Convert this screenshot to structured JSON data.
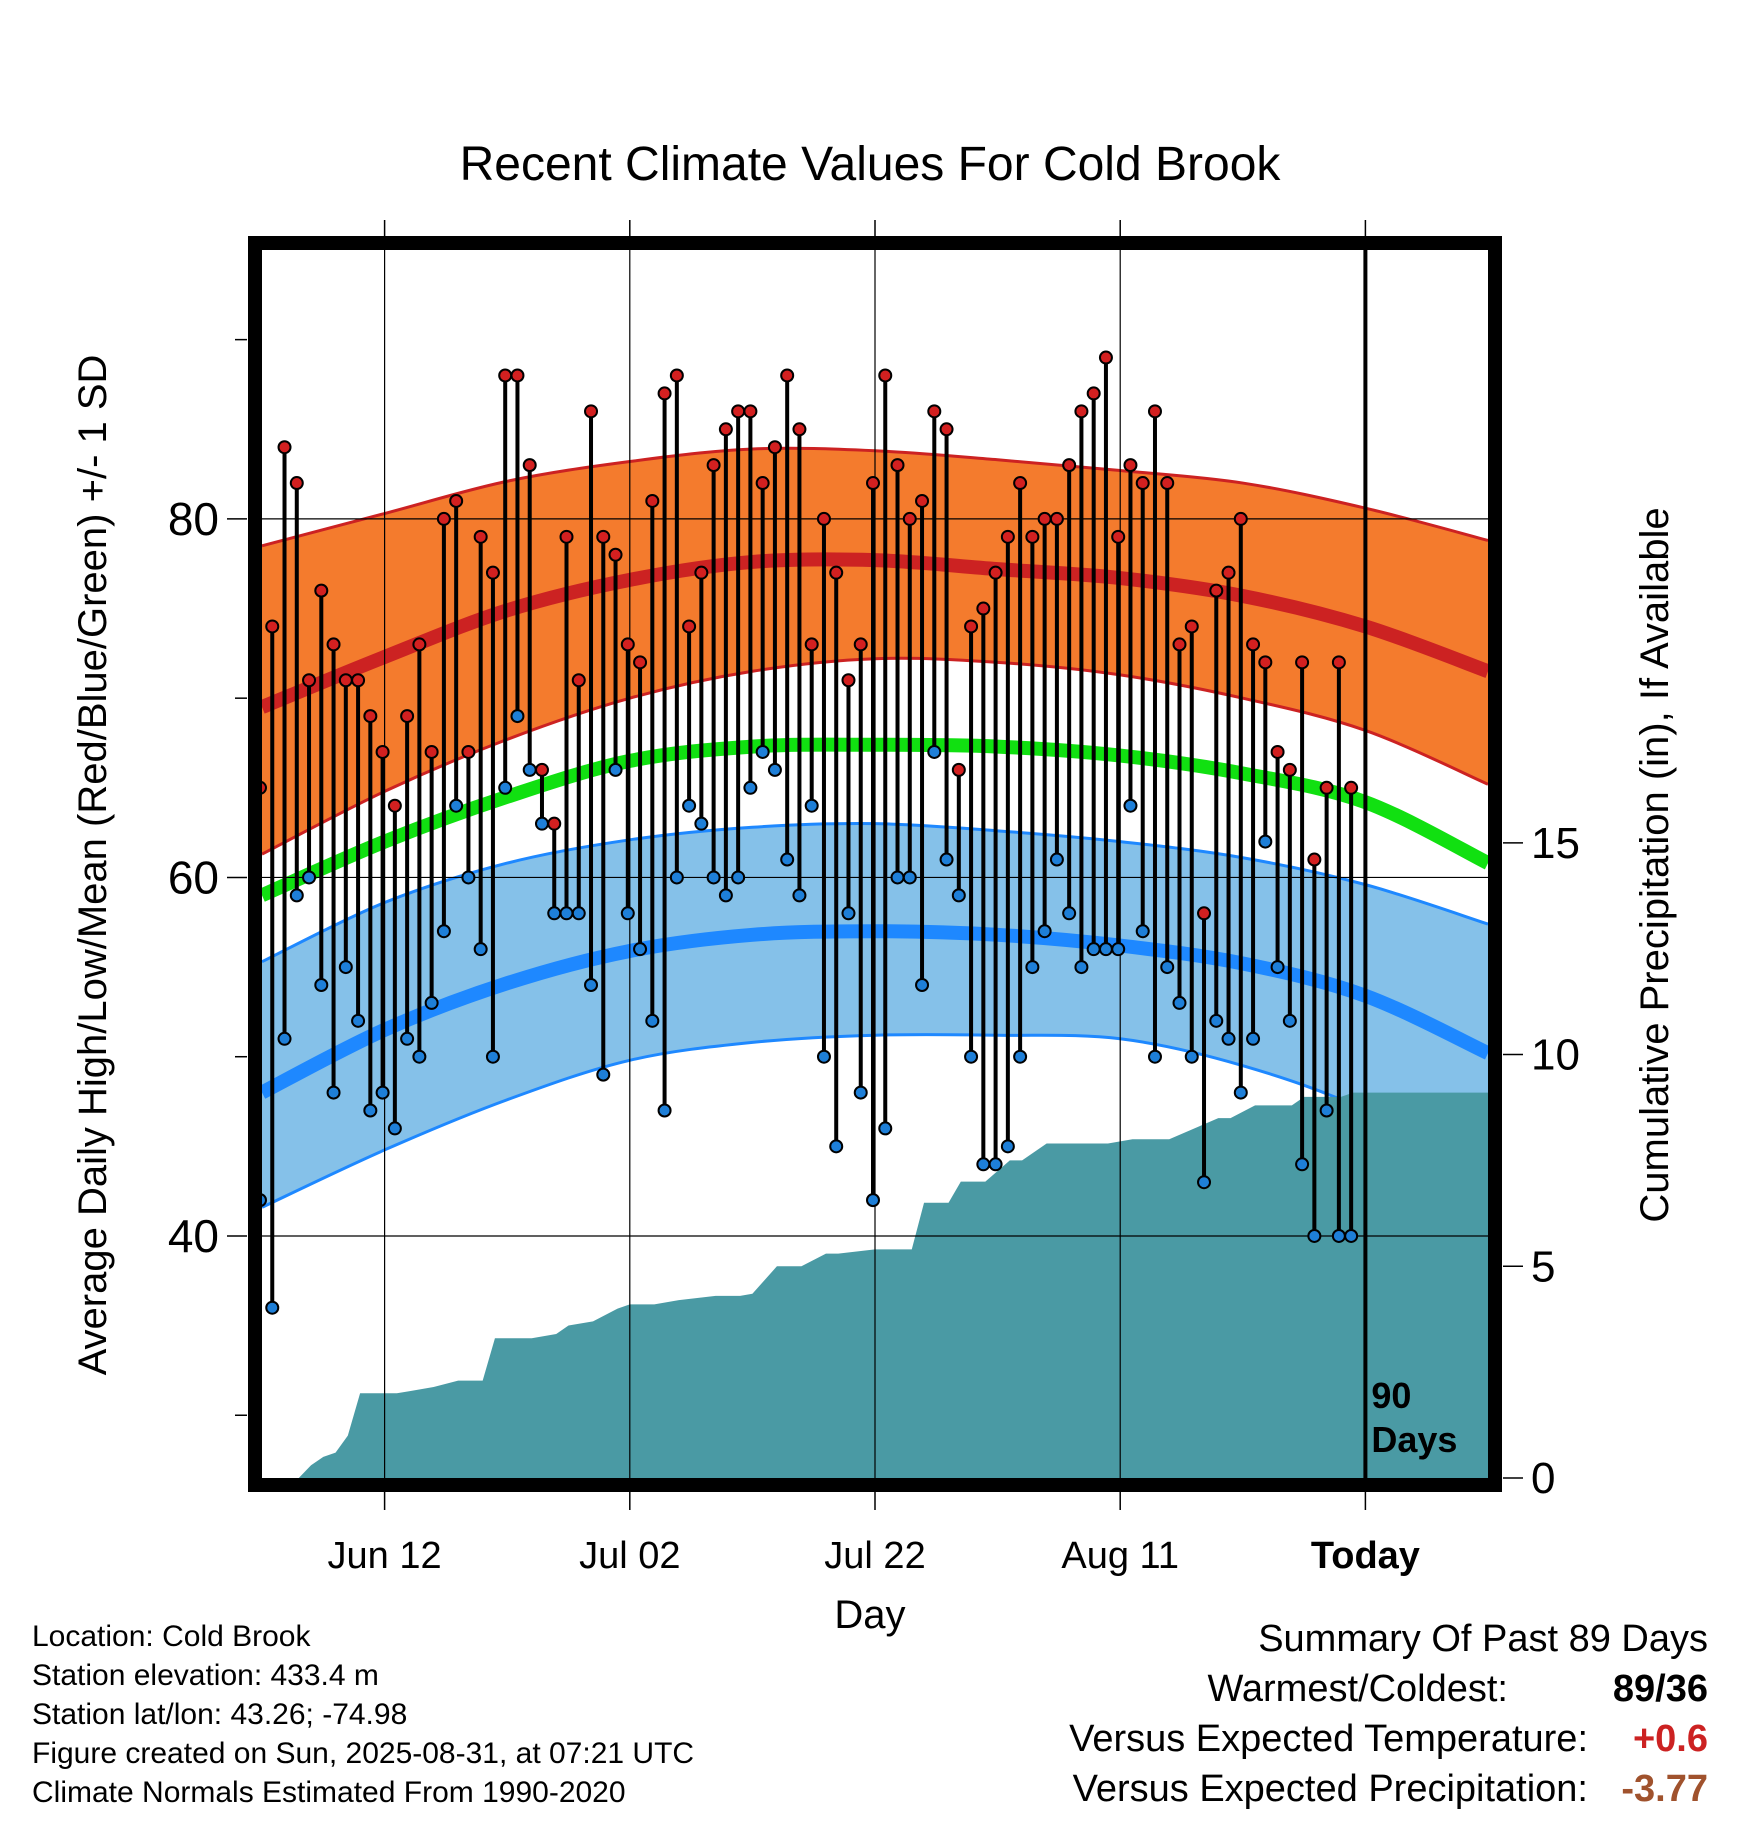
{
  "chart_data": {
    "type": "line",
    "title": "Recent Climate Values For Cold Brook",
    "xlabel": "Day",
    "ylabel": "Average Daily High/Low/Mean (Red/Blue/Green) +/- 1 SD",
    "y2label": "Cumulative Precipitation (in), If Available",
    "x_tick_labels": [
      "Jun 12",
      "Jul 02",
      "Jul 22",
      "Aug 11",
      "Today"
    ],
    "y_ticks": [
      40,
      60,
      80
    ],
    "y2_ticks": [
      0,
      5,
      10,
      15
    ],
    "ylim": [
      26.5,
      95
    ],
    "y2lim": [
      0,
      29
    ],
    "x_day_range": [
      1,
      101
    ],
    "x_tick_days": [
      11,
      31,
      51,
      71,
      91
    ],
    "today_day": 91,
    "today_marker_label": "90 Days",
    "grid": true,
    "colors": {
      "high_band": "#F47B2D",
      "high_mean": "#CC2222",
      "high_edge": "#CC2222",
      "low_band": "#85C1E9",
      "low_mean": "#1E88FF",
      "low_edge": "#1E88FF",
      "mean": "#11E011",
      "precip": "#4A9AA4",
      "high_point": "#D32020",
      "low_point": "#1E7FD8"
    },
    "normals": {
      "day": [
        1,
        11,
        21,
        31,
        41,
        51,
        61,
        71,
        81,
        91,
        101
      ],
      "high_mean": [
        69.5,
        72.3,
        74.9,
        76.6,
        77.6,
        77.7,
        77.2,
        76.7,
        75.7,
        74.0,
        71.5
      ],
      "high_upper": [
        78.5,
        80.3,
        82.1,
        83.2,
        83.9,
        83.8,
        83.3,
        82.7,
        82.0,
        80.6,
        78.8
      ],
      "high_lower": [
        61.3,
        64.8,
        67.7,
        70.0,
        71.5,
        72.2,
        72.0,
        71.3,
        70.0,
        68.2,
        65.2
      ],
      "low_mean": [
        48.0,
        51.5,
        54.1,
        55.9,
        56.8,
        57.0,
        56.8,
        56.2,
        55.2,
        53.4,
        50.2
      ],
      "low_upper": [
        55.3,
        58.6,
        60.8,
        62.1,
        62.8,
        63.0,
        62.6,
        62.0,
        61.1,
        59.6,
        57.4
      ],
      "low_lower": [
        41.6,
        44.8,
        47.6,
        49.8,
        50.8,
        51.2,
        51.2,
        51.0,
        49.5,
        47.0,
        43.0
      ],
      "mean": [
        59.0,
        62.0,
        64.5,
        66.5,
        67.3,
        67.4,
        67.3,
        66.8,
        65.8,
        64.2,
        60.8
      ]
    },
    "series": [
      {
        "name": "Daily High",
        "days": [
          1,
          2,
          3,
          4,
          5,
          6,
          7,
          8,
          9,
          10,
          11,
          12,
          13,
          14,
          15,
          16,
          17,
          18,
          19,
          20,
          21,
          22,
          23,
          24,
          25,
          26,
          27,
          28,
          29,
          30,
          31,
          32,
          33,
          34,
          35,
          36,
          37,
          38,
          39,
          40,
          41,
          42,
          43,
          44,
          45,
          46,
          47,
          48,
          49,
          50,
          51,
          52,
          53,
          54,
          55,
          56,
          57,
          58,
          59,
          60,
          61,
          62,
          63,
          64,
          65,
          66,
          67,
          68,
          69,
          70,
          71,
          72,
          73,
          74,
          75,
          76,
          77,
          78,
          79,
          80,
          81,
          82,
          83,
          84,
          85,
          86,
          87,
          88,
          89,
          90
        ],
        "values": [
          65,
          74,
          84,
          82,
          71,
          76,
          73,
          71,
          71,
          69,
          67,
          64,
          69,
          73,
          67,
          80,
          81,
          67,
          79,
          77,
          88,
          88,
          83,
          66,
          63,
          79,
          71,
          86,
          79,
          78,
          73,
          72,
          81,
          87,
          88,
          74,
          77,
          83,
          85,
          86,
          86,
          82,
          84,
          88,
          85,
          73,
          80,
          77,
          71,
          73,
          82,
          88,
          83,
          80,
          81,
          86,
          85,
          66,
          74,
          75,
          77,
          79,
          82,
          79,
          80,
          80,
          83,
          86,
          87,
          89,
          79,
          83,
          82,
          86,
          82,
          73,
          74,
          58,
          76,
          77,
          80,
          73,
          72,
          67,
          66,
          72,
          61,
          65,
          72,
          65
        ]
      },
      {
        "name": "Daily Low",
        "days": [
          1,
          2,
          3,
          4,
          5,
          6,
          7,
          8,
          9,
          10,
          11,
          12,
          13,
          14,
          15,
          16,
          17,
          18,
          19,
          20,
          21,
          22,
          23,
          24,
          25,
          26,
          27,
          28,
          29,
          30,
          31,
          32,
          33,
          34,
          35,
          36,
          37,
          38,
          39,
          40,
          41,
          42,
          43,
          44,
          45,
          46,
          47,
          48,
          49,
          50,
          51,
          52,
          53,
          54,
          55,
          56,
          57,
          58,
          59,
          60,
          61,
          62,
          63,
          64,
          65,
          66,
          67,
          68,
          69,
          70,
          71,
          72,
          73,
          74,
          75,
          76,
          77,
          78,
          79,
          80,
          81,
          82,
          83,
          84,
          85,
          86,
          87,
          88,
          89,
          90
        ],
        "values": [
          42,
          36,
          51,
          59,
          60,
          54,
          48,
          55,
          52,
          47,
          48,
          46,
          51,
          50,
          53,
          57,
          64,
          60,
          56,
          50,
          65,
          69,
          66,
          63,
          58,
          58,
          58,
          54,
          49,
          66,
          58,
          56,
          52,
          47,
          60,
          64,
          63,
          60,
          59,
          60,
          65,
          67,
          66,
          61,
          59,
          64,
          50,
          45,
          58,
          48,
          42,
          46,
          60,
          60,
          54,
          67,
          61,
          59,
          50,
          44,
          44,
          45,
          50,
          55,
          57,
          61,
          58,
          55,
          56,
          56,
          56,
          64,
          57,
          50,
          55,
          53,
          50,
          43,
          52,
          51,
          48,
          51,
          62,
          55,
          52,
          44,
          40,
          47,
          40,
          40
        ]
      },
      {
        "name": "Cumulative Precipitation",
        "days": [
          1,
          4,
          5,
          6,
          7,
          8,
          9,
          10,
          12,
          13,
          14,
          15,
          17,
          19,
          20,
          21,
          23,
          25,
          26,
          28,
          30,
          31,
          33,
          35,
          38,
          40,
          41,
          43,
          45,
          47,
          48,
          51,
          53,
          54,
          55,
          57,
          58,
          59,
          60,
          62,
          63,
          65,
          66,
          68,
          70,
          72,
          75,
          79,
          80,
          82,
          83,
          85,
          86,
          88,
          89,
          90,
          101
        ],
        "values": [
          0,
          0,
          0.3,
          0.5,
          0.6,
          1.0,
          2.0,
          2.0,
          2.0,
          2.05,
          2.1,
          2.15,
          2.3,
          2.3,
          3.3,
          3.3,
          3.3,
          3.4,
          3.6,
          3.7,
          4.0,
          4.1,
          4.1,
          4.2,
          4.3,
          4.3,
          4.35,
          5.0,
          5.0,
          5.3,
          5.3,
          5.4,
          5.4,
          5.4,
          6.5,
          6.5,
          7.0,
          7.0,
          7.0,
          7.5,
          7.5,
          7.9,
          7.9,
          7.9,
          7.9,
          8.0,
          8.0,
          8.5,
          8.5,
          8.8,
          8.8,
          8.8,
          9.0,
          9.0,
          9.0,
          9.1,
          9.1
        ]
      }
    ]
  },
  "footer_meta": [
    "Location: Cold Brook",
    "Station elevation: 433.4 m",
    "Station lat/lon: 43.26; -74.98",
    "Figure created on Sun, 2025-08-31, at 07:21 UTC",
    "Climate Normals Estimated From 1990-2020"
  ],
  "summary": {
    "title": "Summary Of Past 89 Days",
    "rows": [
      {
        "label": "Warmest/Coldest:",
        "value": "89/36",
        "color": "#000000"
      },
      {
        "label": "Versus Expected Temperature:",
        "value": "+0.6",
        "color": "#CC2222"
      },
      {
        "label": "Versus Expected Precipitation:",
        "value": "-3.77",
        "color": "#A0522D"
      }
    ]
  }
}
